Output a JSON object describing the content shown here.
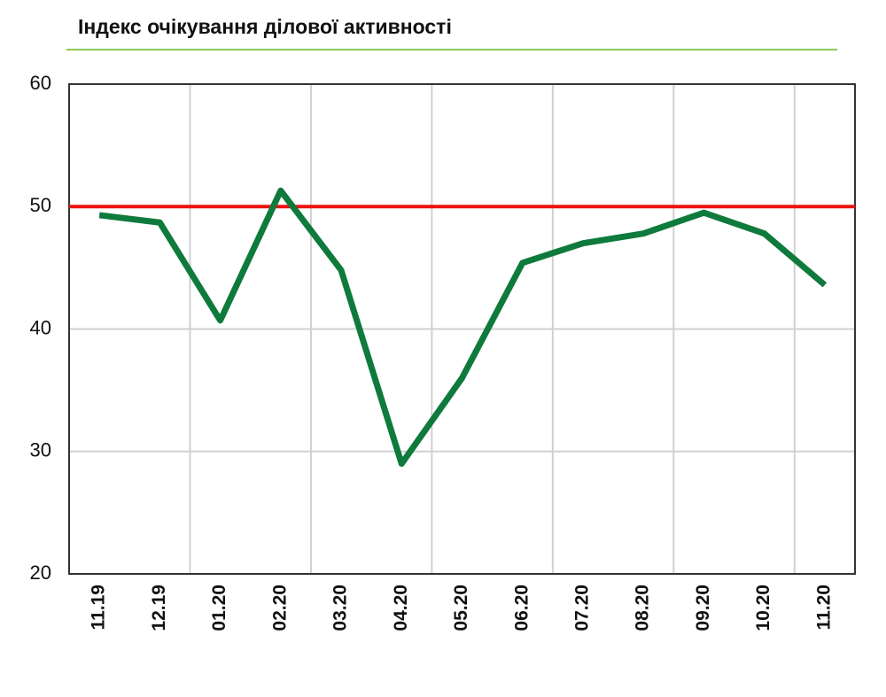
{
  "chart_data": {
    "type": "line",
    "title": "Індекс очікування ділової активності",
    "categories": [
      "11.19",
      "12.19",
      "01.20",
      "02.20",
      "03.20",
      "04.20",
      "05.20",
      "06.20",
      "07.20",
      "08.20",
      "09.20",
      "10.20",
      "11.20"
    ],
    "series": [
      {
        "values": [
          49.3,
          48.7,
          40.7,
          51.3,
          44.8,
          29.0,
          36.0,
          45.4,
          47.0,
          47.8,
          49.5,
          47.8,
          43.6
        ],
        "color": "#0e7a3c"
      }
    ],
    "ylim": [
      20,
      60
    ],
    "yticks": [
      20,
      30,
      40,
      50,
      60
    ],
    "grid": true,
    "reference_line": {
      "value": 50,
      "color": "#ee1111"
    }
  }
}
